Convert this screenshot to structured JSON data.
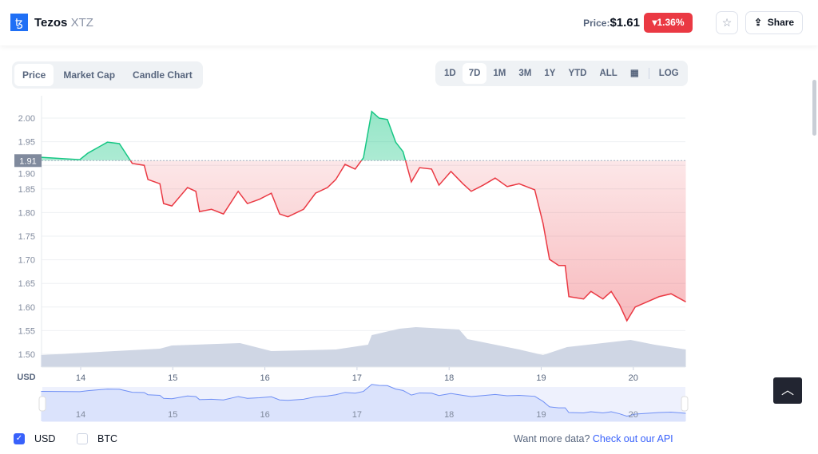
{
  "header": {
    "name": "Tezos",
    "symbol": "XTZ",
    "logo_glyph": "ꜩ",
    "price_label": "Price:",
    "price": "$1.61",
    "change": "1.36%",
    "change_color": "#ea3943",
    "share_label": "Share"
  },
  "tabs": [
    "Price",
    "Market Cap",
    "Candle Chart"
  ],
  "ranges": [
    "1D",
    "7D",
    "1M",
    "3M",
    "1Y",
    "YTD",
    "ALL"
  ],
  "log_label": "LOG",
  "currency_axis_label": "USD",
  "legend": {
    "usd": "USD",
    "btc": "BTC",
    "usd_checked": true,
    "btc_checked": false
  },
  "api": {
    "text": "Want more data?",
    "link": "Check out our API"
  },
  "chart_data": {
    "type": "area",
    "ylim": [
      1.475,
      2.05
    ],
    "yticks": [
      "1.50",
      "1.55",
      "1.60",
      "1.65",
      "1.70",
      "1.75",
      "1.80",
      "1.85",
      "1.90",
      "1.95",
      "2.00"
    ],
    "xticks": [
      "14",
      "15",
      "16",
      "17",
      "18",
      "19",
      "20"
    ],
    "baseline": 1.91,
    "baseline_label": "1.91",
    "up_color": "#16c784",
    "down_color": "#ea3943",
    "x": [
      13.57,
      13.99,
      14.08,
      14.29,
      14.42,
      14.56,
      14.69,
      14.73,
      14.86,
      14.9,
      14.99,
      15.16,
      15.25,
      15.29,
      15.42,
      15.55,
      15.71,
      15.81,
      15.94,
      16.07,
      16.16,
      16.25,
      16.42,
      16.55,
      16.68,
      16.77,
      16.87,
      16.98,
      17.07,
      17.16,
      17.24,
      17.33,
      17.42,
      17.5,
      17.59,
      17.68,
      17.81,
      17.89,
      18.02,
      18.15,
      18.24,
      18.37,
      18.5,
      18.63,
      18.76,
      18.93,
      19.02,
      19.09,
      19.19,
      19.26,
      19.3,
      19.46,
      19.54,
      19.67,
      19.76,
      19.85,
      19.93,
      20.02,
      20.15,
      20.28,
      20.41,
      20.57
    ],
    "y": [
      1.917,
      1.912,
      1.926,
      1.949,
      1.946,
      1.904,
      1.9,
      1.87,
      1.861,
      1.819,
      1.814,
      1.853,
      1.845,
      1.802,
      1.807,
      1.797,
      1.845,
      1.819,
      1.828,
      1.841,
      1.797,
      1.791,
      1.807,
      1.841,
      1.853,
      1.87,
      1.902,
      1.892,
      1.916,
      2.014,
      2.0,
      1.997,
      1.949,
      1.929,
      1.865,
      1.895,
      1.892,
      1.858,
      1.887,
      1.861,
      1.845,
      1.858,
      1.873,
      1.855,
      1.861,
      1.848,
      1.777,
      1.701,
      1.688,
      1.688,
      1.622,
      1.617,
      1.633,
      1.617,
      1.633,
      1.605,
      1.571,
      1.6,
      1.611,
      1.622,
      1.628,
      1.611
    ],
    "volume_x": [
      13.57,
      14.86,
      14.99,
      15.73,
      16.07,
      16.77,
      17.12,
      17.16,
      17.46,
      17.64,
      18.11,
      18.2,
      18.76,
      19.02,
      19.28,
      19.97,
      20.23,
      20.57
    ],
    "volume_relative": [
      0.3,
      0.46,
      0.54,
      0.6,
      0.4,
      0.44,
      0.56,
      0.8,
      0.96,
      1.0,
      0.94,
      0.7,
      0.44,
      0.3,
      0.5,
      0.68,
      0.56,
      0.44
    ]
  }
}
